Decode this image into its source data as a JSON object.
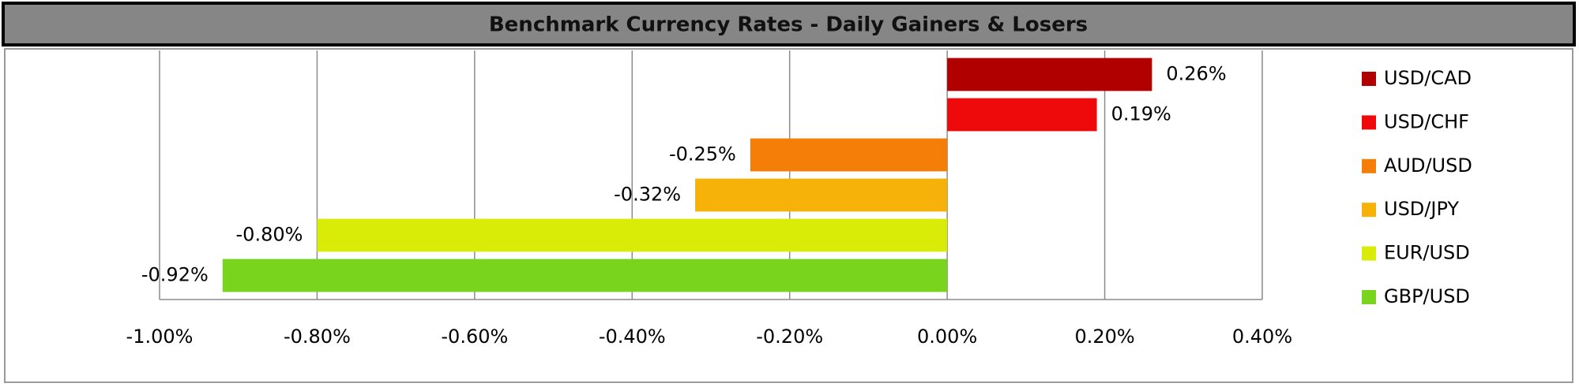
{
  "chart_data": {
    "type": "hbar",
    "title": "Benchmark Currency Rates - Daily Gainers & Losers",
    "categories": [
      "USD/CAD",
      "USD/CHF",
      "AUD/USD",
      "USD/JPY",
      "EUR/USD",
      "GBP/USD"
    ],
    "values": [
      0.26,
      0.19,
      -0.25,
      -0.32,
      -0.8,
      -0.92
    ],
    "value_labels": [
      "0.26%",
      "0.19%",
      "-0.25%",
      "-0.32%",
      "-0.80%",
      "-0.92%"
    ],
    "colors": [
      "#b00000",
      "#ee0a0a",
      "#f47e08",
      "#f7b20a",
      "#d8ec08",
      "#78d41c"
    ],
    "xlim": [
      -1.0,
      0.4
    ],
    "xticks": [
      {
        "value": -1.0,
        "label": "-1.00%"
      },
      {
        "value": -0.8,
        "label": "-0.80%"
      },
      {
        "value": -0.6,
        "label": "-0.60%"
      },
      {
        "value": -0.4,
        "label": "-0.40%"
      },
      {
        "value": -0.2,
        "label": "-0.20%"
      },
      {
        "value": 0,
        "label": "0.00%"
      },
      {
        "value": 0.2,
        "label": "0.20%"
      },
      {
        "value": 0.4,
        "label": "0.40%"
      }
    ],
    "grid": true,
    "legend": "right"
  }
}
